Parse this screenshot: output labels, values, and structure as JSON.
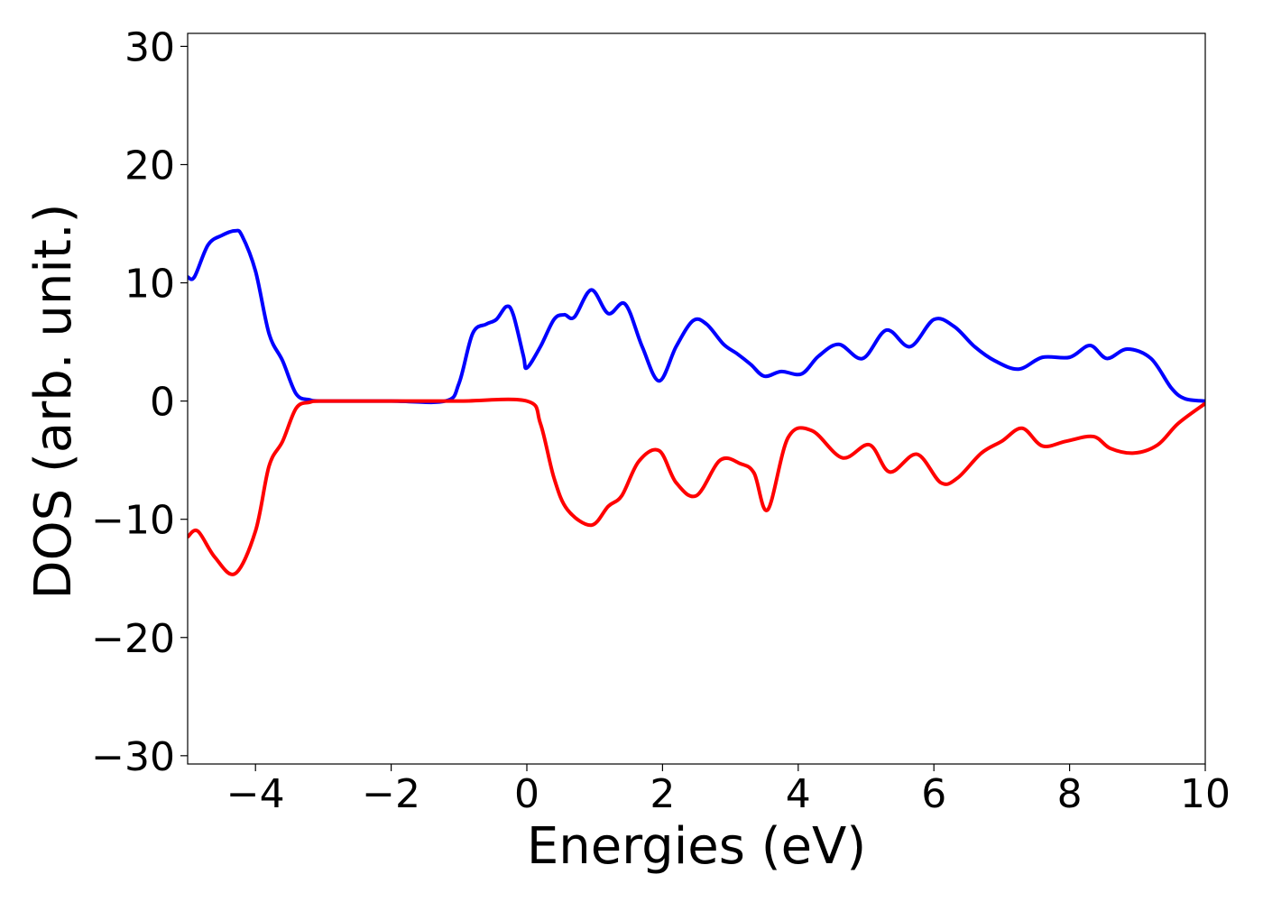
{
  "chart_data": {
    "type": "line",
    "xlabel": "Energies (eV)",
    "ylabel": "DOS (arb. unit.)",
    "xlim": [
      -5,
      10
    ],
    "ylim": [
      -30.7,
      31.1
    ],
    "xticks": [
      {
        "value": -4,
        "label": "−4"
      },
      {
        "value": -2,
        "label": "−2"
      },
      0,
      2,
      4,
      6,
      8,
      10
    ],
    "yticks": [
      {
        "value": -30,
        "label": "−30"
      },
      {
        "value": -20,
        "label": "−20"
      },
      {
        "value": -10,
        "label": "−10"
      },
      0,
      10,
      20,
      30
    ],
    "grid": false,
    "series": [
      {
        "color": "#0000ff",
        "x": [
          -5,
          -4.9,
          -4.7,
          -4.5,
          -4.3,
          -4.2,
          -4.0,
          -3.8,
          -3.6,
          -3.4,
          -3.2,
          -3.0,
          -2.0,
          -1.2,
          -1.0,
          -0.8,
          -0.6,
          -0.45,
          -0.3,
          -0.2,
          -0.05,
          0,
          0.2,
          0.4,
          0.55,
          0.7,
          0.95,
          1.2,
          1.45,
          1.7,
          1.95,
          2.2,
          2.45,
          2.65,
          2.9,
          3.1,
          3.3,
          3.5,
          3.75,
          4.05,
          4.3,
          4.6,
          4.95,
          5.3,
          5.65,
          6.0,
          6.3,
          6.6,
          6.9,
          7.25,
          7.6,
          8.0,
          8.3,
          8.55,
          8.85,
          9.2,
          9.5,
          9.7,
          10
        ],
        "values": [
          10.5,
          10.5,
          13.2,
          14,
          14.4,
          14,
          11,
          5.7,
          3.4,
          0.6,
          0.1,
          0,
          0,
          0,
          1.5,
          5.7,
          6.5,
          6.9,
          8,
          7.3,
          3.8,
          2.8,
          4.6,
          6.9,
          7.3,
          7.1,
          9.4,
          7.4,
          8.2,
          4.6,
          1.7,
          4.6,
          6.8,
          6.5,
          4.8,
          4,
          3.1,
          2.1,
          2.5,
          2.3,
          3.8,
          4.8,
          3.6,
          6,
          4.6,
          6.9,
          6.3,
          4.6,
          3.4,
          2.7,
          3.7,
          3.7,
          4.7,
          3.6,
          4.4,
          3.6,
          1.1,
          0.2,
          0
        ]
      },
      {
        "color": "#ff0000",
        "x": [
          -5,
          -4.85,
          -4.6,
          -4.3,
          -4.0,
          -3.8,
          -3.6,
          -3.4,
          -3.2,
          -3.0,
          -2.0,
          -1.0,
          0,
          0.2,
          0.4,
          0.6,
          0.95,
          1.2,
          1.4,
          1.65,
          1.95,
          2.2,
          2.5,
          2.85,
          3.15,
          3.35,
          3.55,
          3.85,
          4.2,
          4.65,
          5.05,
          5.35,
          5.75,
          6.1,
          6.35,
          6.7,
          7.0,
          7.3,
          7.6,
          7.95,
          8.35,
          8.6,
          8.95,
          9.3,
          9.6,
          10
        ],
        "values": [
          -11.5,
          -11,
          -13.2,
          -14.6,
          -11,
          -5.5,
          -3.4,
          -0.6,
          -0.1,
          0,
          0,
          0,
          0,
          -1.9,
          -6.5,
          -9.2,
          -10.5,
          -8.9,
          -8,
          -5.1,
          -4.2,
          -6.9,
          -8,
          -5,
          -5.3,
          -6.1,
          -9.2,
          -3.1,
          -2.5,
          -4.8,
          -3.7,
          -6,
          -4.5,
          -6.9,
          -6.5,
          -4.4,
          -3.4,
          -2.3,
          -3.8,
          -3.4,
          -3,
          -4,
          -4.4,
          -3.7,
          -1.9,
          -0.2
        ]
      }
    ]
  }
}
